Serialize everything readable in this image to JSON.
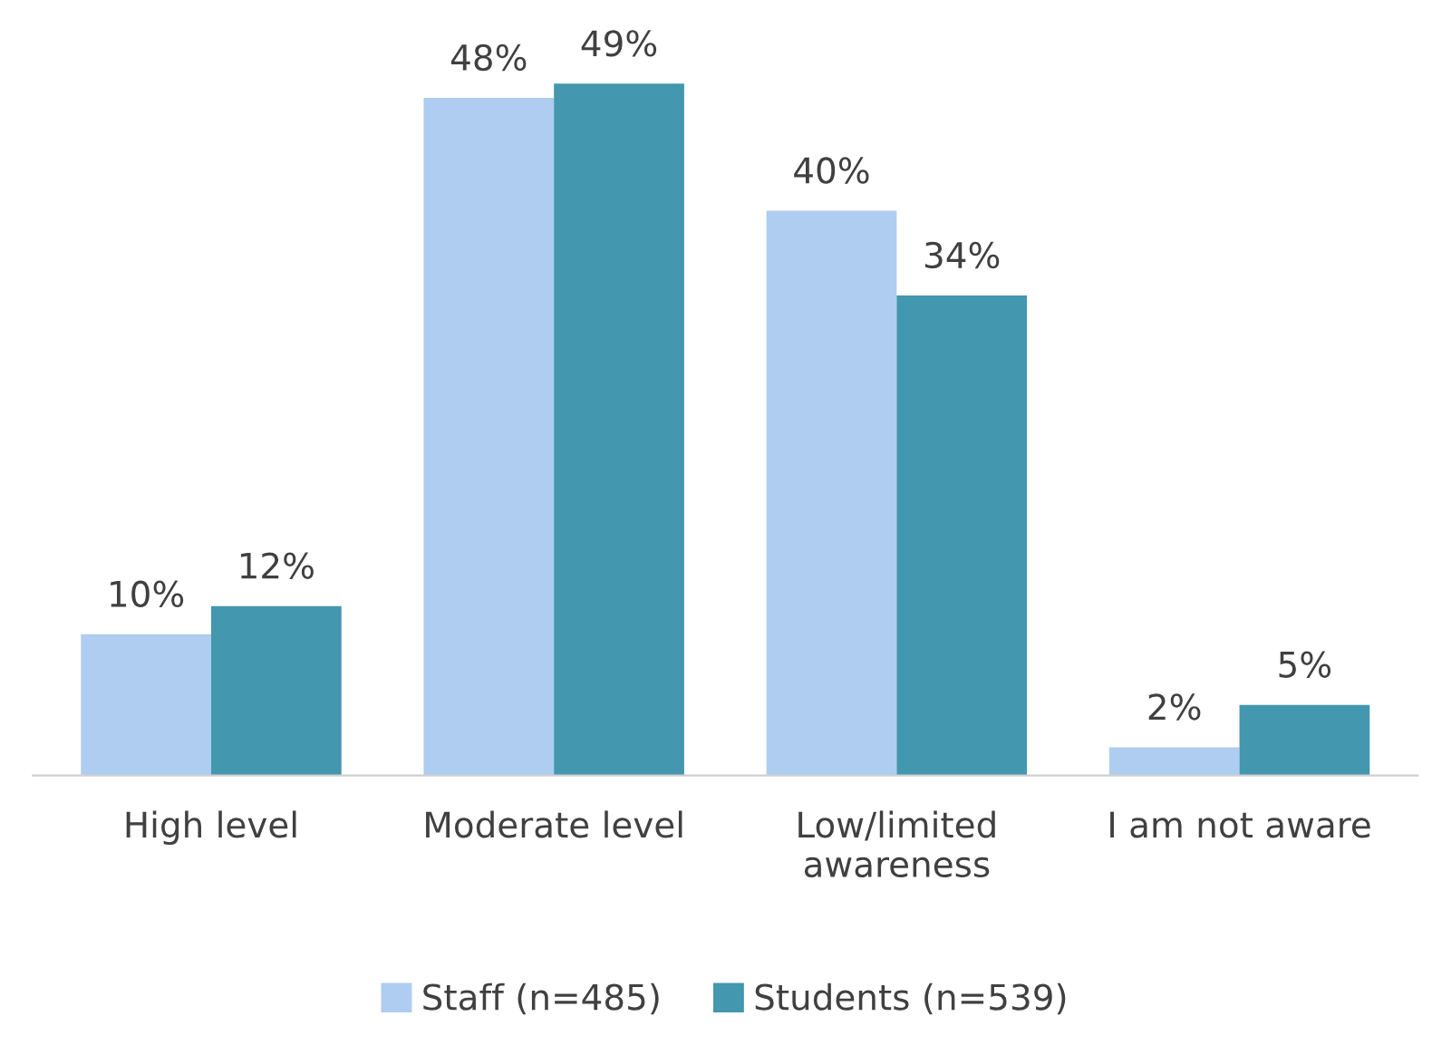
{
  "chart_data": {
    "type": "bar",
    "categories": [
      "High level",
      "Moderate level",
      "Low/limited\nawareness",
      "I am not aware"
    ],
    "series": [
      {
        "name": "Staff (n=485)",
        "color": "#aecdf0",
        "values": [
          10,
          48,
          40,
          2
        ],
        "value_labels": [
          "10%",
          "48%",
          "40%",
          "2%"
        ]
      },
      {
        "name": "Students (n=539)",
        "color": "#4397ae",
        "values": [
          12,
          49,
          34,
          5
        ],
        "value_labels": [
          "12%",
          "49%",
          "34%",
          "5%"
        ]
      }
    ],
    "legend": "bottom",
    "grid": false
  }
}
